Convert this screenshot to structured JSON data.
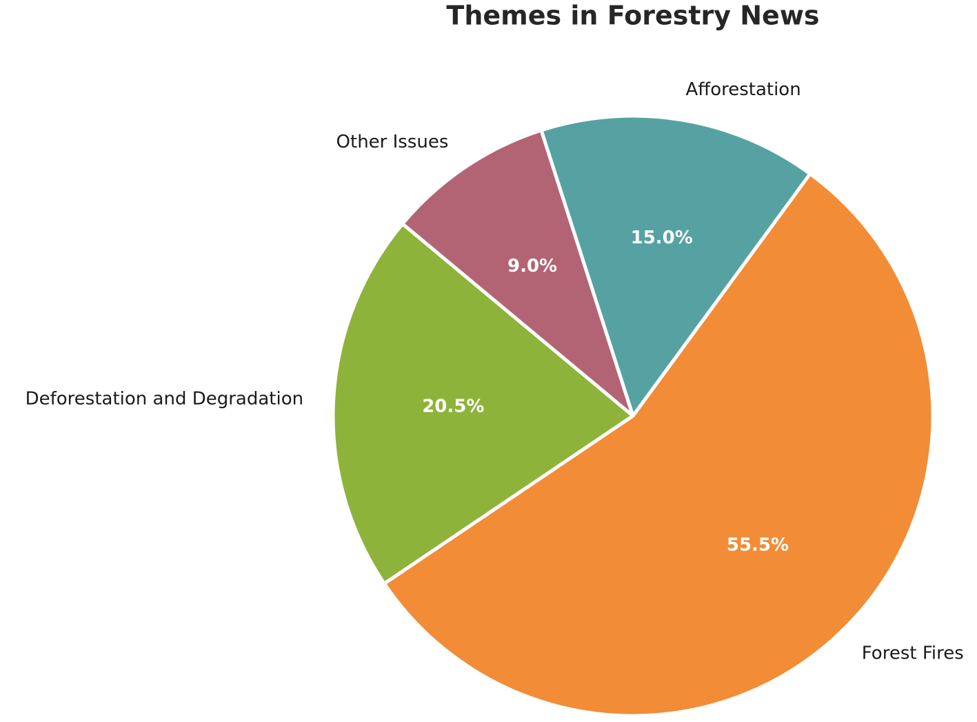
{
  "chart_data": {
    "type": "pie",
    "title": "Themes in Forestry News",
    "categories": [
      "Forest Fires",
      "Deforestation and Degradation",
      "Other Issues",
      "Afforestation"
    ],
    "values": [
      55.5,
      20.5,
      9.0,
      15.0
    ],
    "value_labels": [
      "55.5%",
      "20.5%",
      "9.0%",
      "15.0%"
    ],
    "colors": [
      "#f28c36",
      "#8db33a",
      "#b36474",
      "#56a2a3"
    ]
  }
}
